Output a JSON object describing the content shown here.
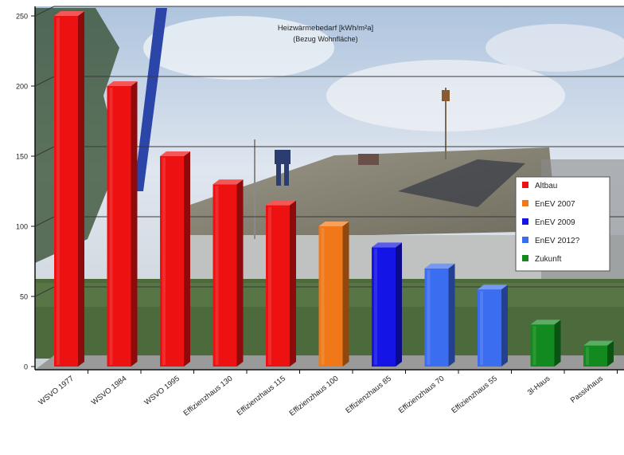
{
  "chart_data": {
    "type": "bar",
    "title": "Heizwärmebedarf [kWh/m²a]",
    "subtitle": "(Bezug Wohnfläche)",
    "xlabel": "",
    "ylabel": "",
    "ylim": [
      0,
      250
    ],
    "yticks": [
      0,
      50,
      100,
      150,
      200,
      250
    ],
    "grid": true,
    "legend_position": "right",
    "categories": [
      "WSVO 1977",
      "WSVO 1984",
      "WSVO 1995",
      "Effizienzhaus 130",
      "Effizienzhaus 115",
      "Effizienzhaus 100",
      "Effizienzhaus 85",
      "Effizienzhaus 70",
      "Effizienzhaus 55",
      "3l-Haus",
      "Passivhaus"
    ],
    "values": [
      250,
      200,
      150,
      130,
      115,
      100,
      85,
      70,
      55,
      30,
      15
    ],
    "bar_series": [
      "Altbau",
      "Altbau",
      "Altbau",
      "Altbau",
      "Altbau",
      "EnEV 2007",
      "EnEV 2009",
      "EnEV 2012?",
      "EnEV 2012?",
      "Zukunft",
      "Zukunft"
    ],
    "series": [
      {
        "name": "Altbau",
        "color": "#ee1111"
      },
      {
        "name": "EnEV 2007",
        "color": "#f07818"
      },
      {
        "name": "EnEV 2009",
        "color": "#1414e6"
      },
      {
        "name": "EnEV 2012?",
        "color": "#3b6df0"
      },
      {
        "name": "Zukunft",
        "color": "#138a1f"
      }
    ]
  }
}
